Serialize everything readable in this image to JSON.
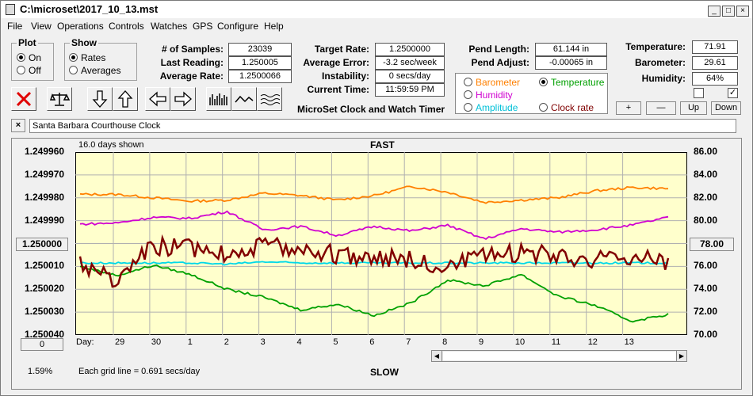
{
  "window": {
    "title": "C:\\microset\\2017_10_13.mst"
  },
  "menu": [
    "File",
    "View",
    "Operations",
    "Controls",
    "Watches",
    "GPS",
    "Configure",
    "Help"
  ],
  "plot": {
    "label": "Plot",
    "on": "On",
    "off": "Off",
    "selected": "On"
  },
  "show": {
    "label": "Show",
    "rates": "Rates",
    "averages": "Averages",
    "selected": "Rates"
  },
  "stats": {
    "samples_label": "# of Samples:",
    "samples": "23039",
    "last_reading_label": "Last Reading:",
    "last_reading": "1.250005",
    "average_rate_label": "Average Rate:",
    "average_rate": "1.2500066",
    "target_rate_label": "Target Rate:",
    "target_rate": "1.2500000",
    "average_error_label": "Average Error:",
    "average_error": "-3.2 sec/week",
    "instability_label": "Instability:",
    "instability": "0 secs/day",
    "current_time_label": "Current Time:",
    "current_time": "11:59:59 PM",
    "pend_length_label": "Pend Length:",
    "pend_length": "61.144 in",
    "pend_adjust_label": "Pend Adjust:",
    "pend_adjust": "-0.00065 in",
    "temperature_label": "Temperature:",
    "temperature": "71.91",
    "barometer_label": "Barometer:",
    "barometer": "29.61",
    "humidity_label": "Humidity:",
    "humidity": "64%"
  },
  "app_label": "MicroSet Clock and Watch Timer",
  "sensors": {
    "barometer": "Barometer",
    "temperature": "Temperature",
    "humidity": "Humidity",
    "amplitude": "Amplitude",
    "clock_rate": "Clock rate",
    "selected": "Temperature",
    "colors": {
      "barometer": "#ff8000",
      "temperature": "#00a000",
      "humidity": "#d000d0",
      "amplitude": "#00d8e8",
      "clock_rate": "#800000"
    }
  },
  "buttons": {
    "plus": "+",
    "minus": "—",
    "up": "Up",
    "down": "Down",
    "close_x": "×"
  },
  "description": "Santa Barbara Courthouse Clock",
  "chart_top": {
    "days_shown": "16.0 days shown",
    "fast": "FAST"
  },
  "chart_bottom": {
    "slow": "SLOW",
    "gridline": "Each grid line = 0.691 secs/day",
    "percent": "1.59%",
    "left_box": "0",
    "day_label": "Day:"
  },
  "chart_data": {
    "type": "line",
    "left_axis": [
      "1.249960",
      "1.249970",
      "1.249980",
      "1.249990",
      "1.250000",
      "1.250010",
      "1.250020",
      "1.250030",
      "1.250040"
    ],
    "right_axis": [
      "86.00",
      "84.00",
      "82.00",
      "80.00",
      "78.00",
      "76.00",
      "74.00",
      "72.00",
      "70.00"
    ],
    "left_highlight": "1.250000",
    "right_highlight": "78.00",
    "days": [
      "29",
      "30",
      "1",
      "2",
      "3",
      "4",
      "5",
      "6",
      "7",
      "8",
      "9",
      "10",
      "11",
      "12",
      "13"
    ],
    "series": [
      {
        "name": "Barometer",
        "color": "#ff8000",
        "right_axis": true,
        "x": [
          0,
          1,
          2,
          3,
          4,
          5,
          6,
          7,
          8,
          9,
          10,
          11,
          12,
          13,
          14,
          15,
          16
        ],
        "y": [
          82.3,
          82.3,
          82.0,
          81.7,
          81.8,
          82.4,
          82.2,
          81.8,
          82.2,
          83.0,
          82.5,
          81.6,
          81.8,
          82.0,
          82.6,
          82.9,
          82.8
        ]
      },
      {
        "name": "Humidity",
        "color": "#d000d0",
        "right_axis": true,
        "x": [
          0,
          1,
          2,
          3,
          4,
          5,
          6,
          7,
          8,
          9,
          10,
          11,
          12,
          13,
          14,
          15,
          16
        ],
        "y": [
          79.7,
          79.8,
          80.3,
          80.2,
          80.8,
          79.2,
          79.5,
          78.7,
          79.5,
          79.1,
          79.6,
          78.4,
          79.3,
          79.0,
          79.2,
          79.6,
          80.3
        ]
      },
      {
        "name": "Temperature",
        "color": "#00a000",
        "right_axis": true,
        "x": [
          0,
          1,
          2,
          3,
          4,
          5,
          6,
          7,
          8,
          9,
          10,
          11,
          12,
          13,
          14,
          15,
          16
        ],
        "y": [
          76.0,
          75.2,
          76.1,
          75.3,
          74.0,
          73.3,
          72.2,
          72.7,
          71.7,
          72.8,
          74.8,
          74.3,
          75.3,
          73.4,
          72.6,
          71.2,
          71.8
        ]
      },
      {
        "name": "Amplitude",
        "color": "#00d8e8",
        "right_axis": true,
        "x": [
          0,
          1,
          2,
          3,
          4,
          5,
          6,
          7,
          8,
          9,
          10,
          11,
          12,
          13,
          14,
          15,
          16
        ],
        "y": [
          76.3,
          76.3,
          76.3,
          76.3,
          76.2,
          76.4,
          76.3,
          76.3,
          76.3,
          76.3,
          76.3,
          76.3,
          76.3,
          76.3,
          76.3,
          76.3,
          76.3
        ]
      },
      {
        "name": "Clock rate",
        "color": "#800000",
        "right_axis": false,
        "x": [
          0,
          1,
          2,
          3,
          4,
          5,
          6,
          7,
          8,
          9,
          10,
          11,
          12,
          13,
          14,
          15,
          16
        ],
        "y": [
          1.250008,
          1.250017,
          1.250001,
          1.250002,
          1.250004,
          1.250001,
          1.250002,
          1.250005,
          1.250006,
          1.250007,
          1.25001,
          1.250006,
          1.250004,
          1.250005,
          1.250007,
          1.250006,
          1.250008
        ]
      }
    ]
  }
}
